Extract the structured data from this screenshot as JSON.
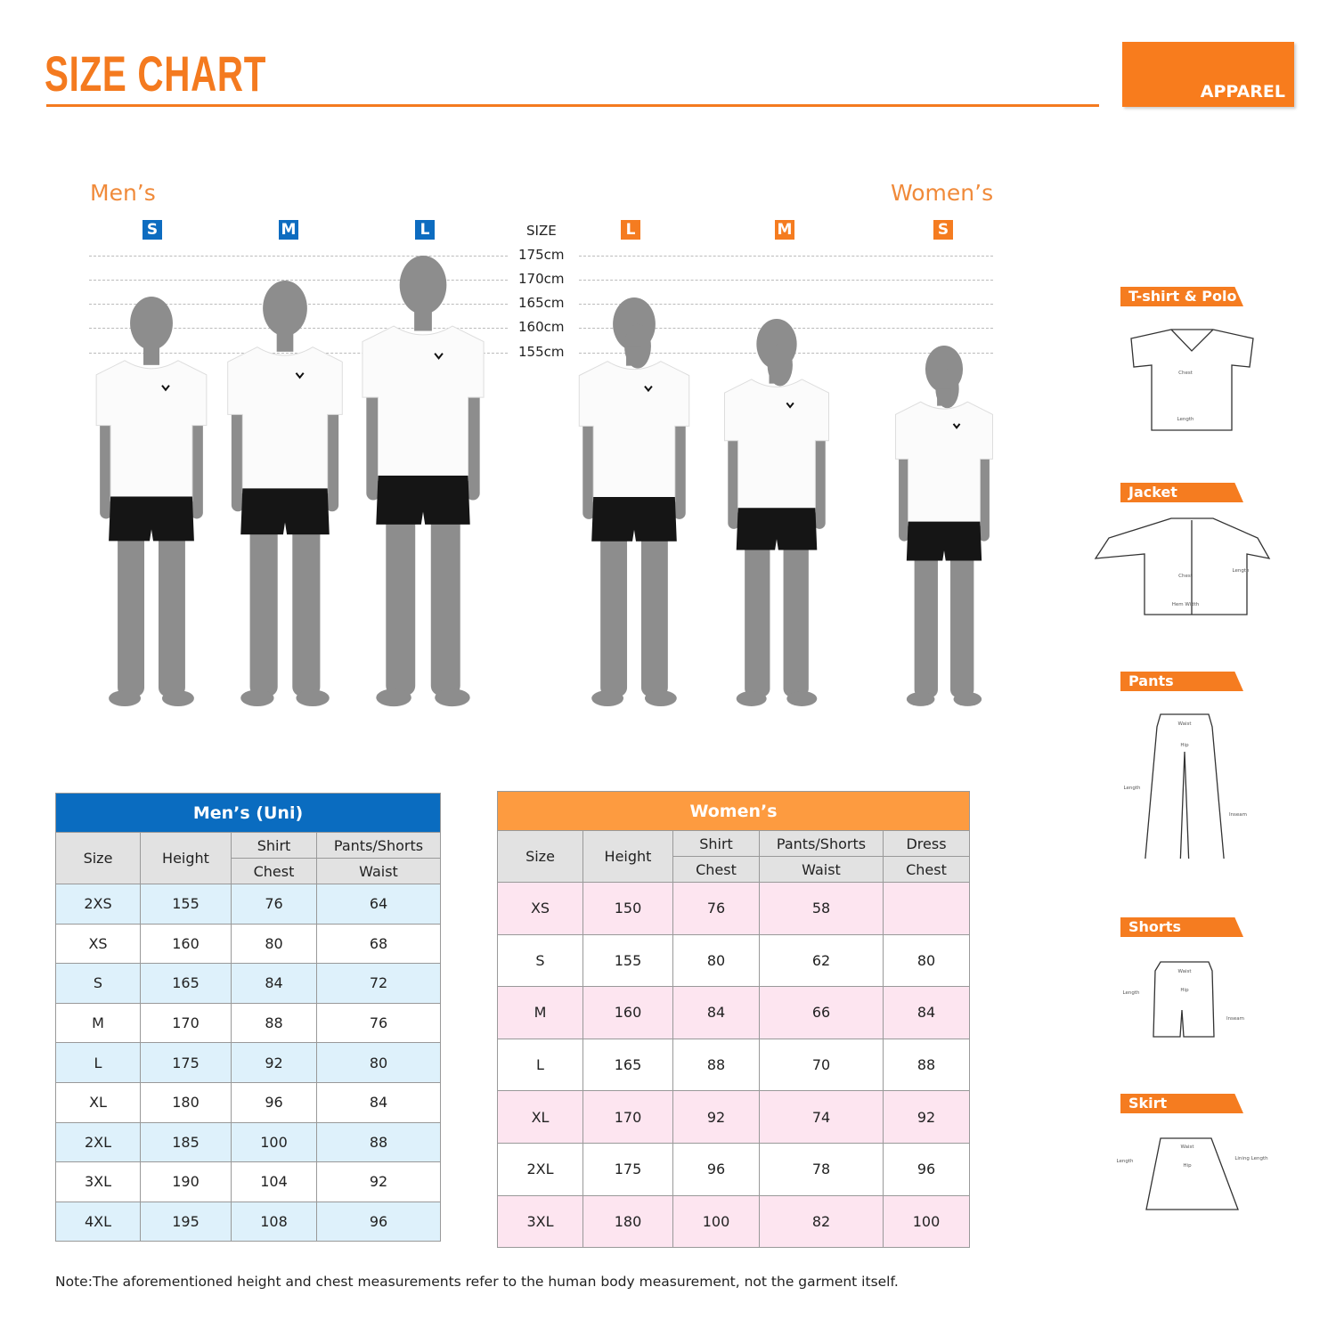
{
  "header": {
    "title": "SIZE CHART",
    "category": "APPAREL"
  },
  "colors": {
    "accent": "#f47a1f",
    "mens_blue": "#0a6cc0",
    "womens_orange": "#fd9b40",
    "mens_alt_row": "#def1fb",
    "womens_alt_row": "#fde5f0"
  },
  "figures": {
    "mens_label": "Men’s",
    "womens_label": "Women’s",
    "size_label": "SIZE",
    "mens_sizes": [
      "S",
      "M",
      "L"
    ],
    "womens_sizes": [
      "L",
      "M",
      "S"
    ],
    "height_ticks": [
      "175cm",
      "170cm",
      "165cm",
      "160cm",
      "155cm"
    ]
  },
  "mens_table": {
    "title": "Men’s (Uni)",
    "headers": {
      "size": "Size",
      "height": "Height",
      "shirt": "Shirt",
      "shirt_sub": "Chest",
      "pants": "Pants/Shorts",
      "pants_sub": "Waist"
    },
    "rows": [
      [
        "2XS",
        "155",
        "76",
        "64"
      ],
      [
        "XS",
        "160",
        "80",
        "68"
      ],
      [
        "S",
        "165",
        "84",
        "72"
      ],
      [
        "M",
        "170",
        "88",
        "76"
      ],
      [
        "L",
        "175",
        "92",
        "80"
      ],
      [
        "XL",
        "180",
        "96",
        "84"
      ],
      [
        "2XL",
        "185",
        "100",
        "88"
      ],
      [
        "3XL",
        "190",
        "104",
        "92"
      ],
      [
        "4XL",
        "195",
        "108",
        "96"
      ]
    ]
  },
  "womens_table": {
    "title": "Women’s",
    "headers": {
      "size": "Size",
      "height": "Height",
      "shirt": "Shirt",
      "shirt_sub": "Chest",
      "pants": "Pants/Shorts",
      "pants_sub": "Waist",
      "dress": "Dress",
      "dress_sub": "Chest"
    },
    "rows": [
      [
        "XS",
        "150",
        "76",
        "58",
        ""
      ],
      [
        "S",
        "155",
        "80",
        "62",
        "80"
      ],
      [
        "M",
        "160",
        "84",
        "66",
        "84"
      ],
      [
        "L",
        "165",
        "88",
        "70",
        "88"
      ],
      [
        "XL",
        "170",
        "92",
        "74",
        "92"
      ],
      [
        "2XL",
        "175",
        "96",
        "78",
        "96"
      ],
      [
        "3XL",
        "180",
        "100",
        "82",
        "100"
      ]
    ]
  },
  "garments": [
    {
      "name": "T-shirt & Polo",
      "labels": [
        "Chest",
        "Length"
      ]
    },
    {
      "name": "Jacket",
      "labels": [
        "Chest",
        "Length",
        "Hem Width"
      ]
    },
    {
      "name": "Pants",
      "labels": [
        "Waist",
        "Hip",
        "Length",
        "Inseam"
      ]
    },
    {
      "name": "Shorts",
      "labels": [
        "Waist",
        "Hip",
        "Length",
        "Inseam"
      ]
    },
    {
      "name": "Skirt",
      "labels": [
        "Waist",
        "Hip",
        "Length",
        "Lining Length"
      ]
    }
  ],
  "note": "Note:The aforementioned height and chest measurements refer to the human body measurement, not the garment itself."
}
